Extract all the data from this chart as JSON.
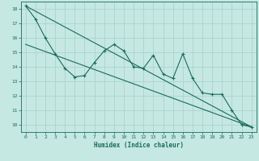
{
  "title": "",
  "xlabel": "Humidex (Indice chaleur)",
  "bg_color": "#c5e8e2",
  "grid_color": "#aad4cc",
  "line_color": "#1a6b5a",
  "xlim": [
    -0.5,
    23.5
  ],
  "ylim": [
    9.5,
    18.5
  ],
  "yticks": [
    10,
    11,
    12,
    13,
    14,
    15,
    16,
    17,
    18
  ],
  "xticks": [
    0,
    1,
    2,
    3,
    4,
    5,
    6,
    7,
    8,
    9,
    10,
    11,
    12,
    13,
    14,
    15,
    16,
    17,
    18,
    19,
    20,
    21,
    22,
    23
  ],
  "data_x": [
    0,
    1,
    2,
    3,
    4,
    5,
    6,
    7,
    8,
    9,
    10,
    11,
    12,
    13,
    14,
    15,
    16,
    17,
    18,
    19,
    20,
    21,
    22,
    23
  ],
  "data_y": [
    18.2,
    17.3,
    16.0,
    14.9,
    13.9,
    13.3,
    13.4,
    14.3,
    15.1,
    15.55,
    15.1,
    14.0,
    13.9,
    14.8,
    13.5,
    13.2,
    14.9,
    13.2,
    12.2,
    12.1,
    12.1,
    11.0,
    10.0,
    9.85
  ],
  "line1_x": [
    0,
    23
  ],
  "line1_y": [
    18.2,
    9.85
  ],
  "line2_x": [
    0,
    23
  ],
  "line2_y": [
    15.55,
    9.85
  ]
}
